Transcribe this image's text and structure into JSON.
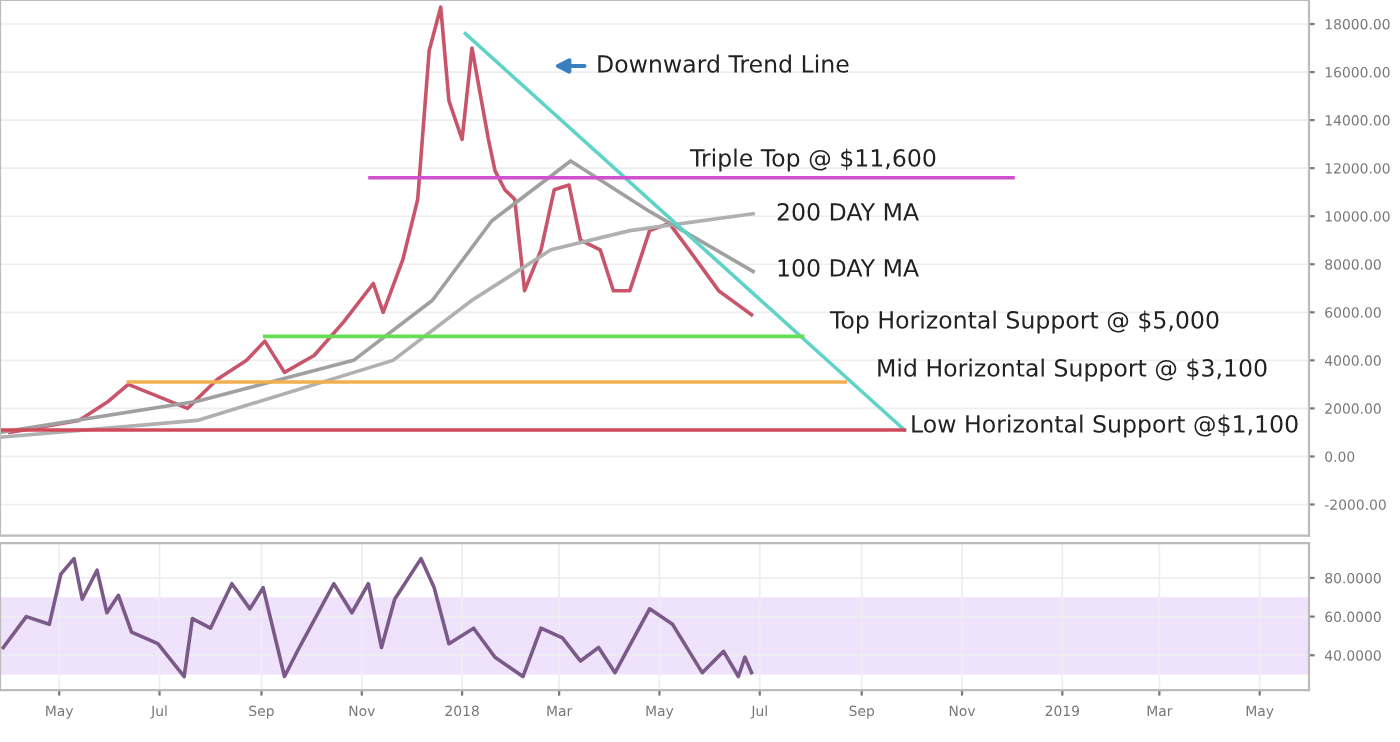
{
  "chart_data": [
    {
      "type": "line",
      "xlim": [
        "2017-03-26",
        "2019-05-31"
      ],
      "ylim": [
        -3300,
        19000
      ],
      "yticks": [
        {
          "value": -2000,
          "label": "-2000.00"
        },
        {
          "value": 0,
          "label": "0.00"
        },
        {
          "value": 2000,
          "label": "2000.00"
        },
        {
          "value": 4000,
          "label": "4000.00"
        },
        {
          "value": 6000,
          "label": "6000.00"
        },
        {
          "value": 8000,
          "label": "8000.00"
        },
        {
          "value": 10000,
          "label": "10000.00"
        },
        {
          "value": 12000,
          "label": "12000.00"
        },
        {
          "value": 14000,
          "label": "14000.00"
        },
        {
          "value": 16000,
          "label": "16000.00"
        },
        {
          "value": 18000,
          "label": "18000.00"
        }
      ],
      "tick_labels": "y",
      "grid": true,
      "series": [
        {
          "color": "#c8556a",
          "x": [
            "2017-04-01",
            "2017-05-13",
            "2017-05-31",
            "2017-06-12",
            "2017-06-30",
            "2017-07-18",
            "2017-08-05",
            "2017-08-23",
            "2017-09-03",
            "2017-09-15",
            "2017-10-03",
            "2017-10-21",
            "2017-11-08",
            "2017-11-14",
            "2017-11-26",
            "2017-12-05",
            "2017-12-12",
            "2017-12-19",
            "2017-12-24",
            "2018-01-01",
            "2018-01-07",
            "2018-01-17",
            "2018-01-21",
            "2018-01-27",
            "2018-02-02",
            "2018-02-08",
            "2018-02-18",
            "2018-02-26",
            "2018-03-07",
            "2018-03-14",
            "2018-03-26",
            "2018-04-03",
            "2018-04-13",
            "2018-04-25",
            "2018-05-07",
            "2018-05-19",
            "2018-06-06",
            "2018-06-18",
            "2018-06-26"
          ],
          "values": [
            1000,
            1500,
            2300,
            3000,
            2500,
            2000,
            3200,
            4000,
            4800,
            3500,
            4200,
            5600,
            7200,
            6000,
            8200,
            10700,
            16900,
            18700,
            14800,
            13200,
            17000,
            13200,
            11900,
            11100,
            10700,
            6900,
            8600,
            11100,
            11300,
            9000,
            8600,
            6900,
            6900,
            9400,
            9700,
            8600,
            6900,
            6300,
            5900
          ]
        },
        {
          "color": "#b0b0b0",
          "x": [
            "2017-03-26",
            "2017-07-24",
            "2017-11-20",
            "2018-01-07",
            "2018-02-24",
            "2018-04-13",
            "2018-06-27"
          ],
          "values": [
            800,
            1500,
            4000,
            6500,
            8600,
            9400,
            10100
          ]
        },
        {
          "color": "#a0a0a0",
          "x": [
            "2017-03-26",
            "2017-07-24",
            "2017-10-27",
            "2017-12-14",
            "2018-01-19",
            "2018-03-08",
            "2018-04-25",
            "2018-06-27"
          ],
          "values": [
            1000,
            2300,
            4000,
            6500,
            9800,
            12300,
            10200,
            7700
          ]
        },
        {
          "color": "#5fd3c8",
          "x": [
            "2018-01-03",
            "2018-09-27"
          ],
          "values": [
            17600,
            1100
          ]
        },
        {
          "color": "#d050d0",
          "x": [
            "2017-11-06",
            "2018-12-02"
          ],
          "values": [
            11600,
            11600
          ]
        },
        {
          "color": "#66dd55",
          "x": [
            "2017-09-03",
            "2018-07-27"
          ],
          "values": [
            5000,
            5000
          ]
        },
        {
          "color": "#f0b050",
          "x": [
            "2017-06-12",
            "2018-08-22"
          ],
          "values": [
            3100,
            3100
          ]
        },
        {
          "color": "#d04a5a",
          "x": [
            "2017-03-26",
            "2018-09-27"
          ],
          "values": [
            1100,
            1100
          ]
        }
      ],
      "annotations": [
        "Downward Trend Line",
        "Triple Top @ $11,600",
        "200 DAY MA",
        "100 DAY MA",
        "Top Horizontal Support @ $5,000",
        "Mid Horizontal Support @ $3,100",
        "Low Horizontal Support @$1,100"
      ]
    },
    {
      "type": "line",
      "xlim": [
        "2017-03-26",
        "2019-05-31"
      ],
      "ylim": [
        22,
        98
      ],
      "xticks": [
        {
          "value": "2017-05-01",
          "label": "May"
        },
        {
          "value": "2017-07-01",
          "label": "Jul"
        },
        {
          "value": "2017-09-01",
          "label": "Sep"
        },
        {
          "value": "2017-11-01",
          "label": "Nov"
        },
        {
          "value": "2018-01-01",
          "label": "2018"
        },
        {
          "value": "2018-03-01",
          "label": "Mar"
        },
        {
          "value": "2018-05-01",
          "label": "May"
        },
        {
          "value": "2018-07-01",
          "label": "Jul"
        },
        {
          "value": "2018-09-01",
          "label": "Sep"
        },
        {
          "value": "2018-11-01",
          "label": "Nov"
        },
        {
          "value": "2019-01-01",
          "label": "2019"
        },
        {
          "value": "2019-03-01",
          "label": "Mar"
        },
        {
          "value": "2019-05-01",
          "label": "May"
        }
      ],
      "yticks": [
        {
          "value": 40,
          "label": "40.0000"
        },
        {
          "value": 60,
          "label": "60.0000"
        },
        {
          "value": 80,
          "label": "80.0000"
        }
      ],
      "grid": true,
      "bands": [
        {
          "axis": "y",
          "from": 30,
          "to": 70,
          "color": "#efe3fb"
        }
      ],
      "series": [
        {
          "color": "#7b5a8a",
          "x": [
            "2017-03-28",
            "2017-04-11",
            "2017-04-25",
            "2017-05-02",
            "2017-05-10",
            "2017-05-15",
            "2017-05-24",
            "2017-05-30",
            "2017-06-06",
            "2017-06-14",
            "2017-06-30",
            "2017-07-16",
            "2017-07-21",
            "2017-08-01",
            "2017-08-14",
            "2017-08-25",
            "2017-09-02",
            "2017-09-15",
            "2017-09-24",
            "2017-10-15",
            "2017-10-26",
            "2017-11-05",
            "2017-11-13",
            "2017-11-21",
            "2017-12-07",
            "2017-12-15",
            "2017-12-24",
            "2018-01-08",
            "2018-01-21",
            "2018-02-07",
            "2018-02-18",
            "2018-03-03",
            "2018-03-14",
            "2018-03-25",
            "2018-04-04",
            "2018-04-25",
            "2018-05-09",
            "2018-05-27",
            "2018-06-09",
            "2018-06-18",
            "2018-06-22",
            "2018-06-26"
          ],
          "values": [
            44,
            60,
            56,
            82,
            90,
            69,
            84,
            62,
            71,
            52,
            46,
            29,
            59,
            54,
            77,
            64,
            75,
            29,
            44,
            77,
            62,
            77,
            44,
            69,
            90,
            75,
            46,
            54,
            39,
            29,
            54,
            49,
            37,
            44,
            31,
            64,
            56,
            31,
            42,
            29,
            39,
            31
          ]
        }
      ]
    }
  ]
}
